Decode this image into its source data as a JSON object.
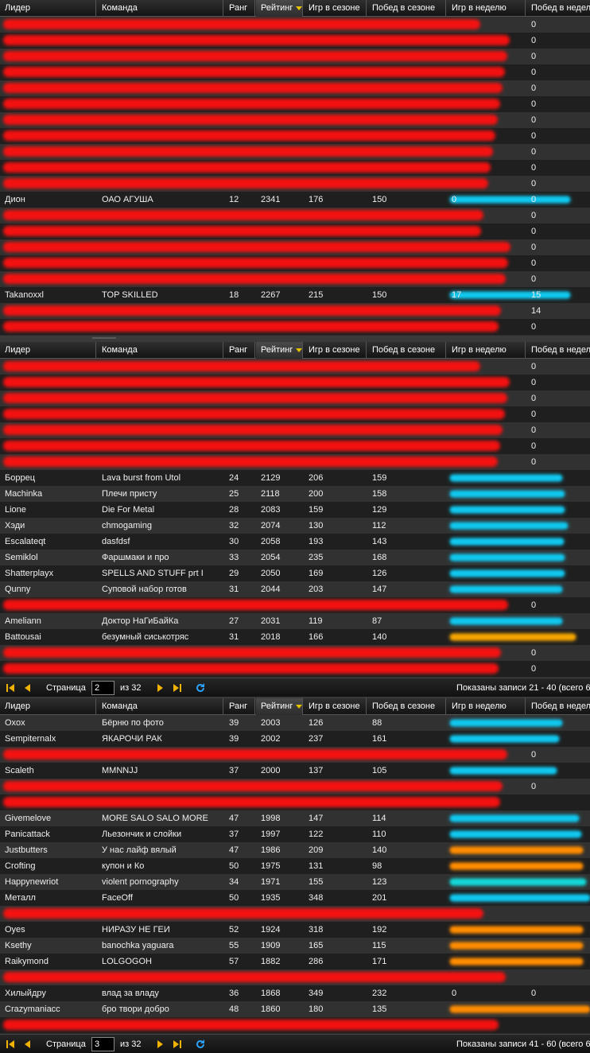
{
  "columns": {
    "leader": "Лидер",
    "team": "Команда",
    "rank": "Ранг",
    "rating": "Рейтинг",
    "season_games": "Игр в сезоне",
    "season_wins": "Побед в сезоне",
    "week_games": "Игр в неделю",
    "week_wins": "Побед в неделю"
  },
  "colors": {
    "bar_cyan": "#10c8f0",
    "bar_orange": "#ff8c00",
    "bar_gold": "#f5a500",
    "bar_teal": "#14d8d8",
    "redaction": "#ff1010",
    "sort_arrow": "#e6c200"
  },
  "pager1": {
    "page_label": "Страница",
    "page": "2",
    "of": "из 32",
    "summary": "Показаны записи 21 - 40 (всего 6"
  },
  "pager2": {
    "page_label": "Страница",
    "page": "3",
    "of": "из 32",
    "summary": "Показаны записи 41 - 60 (всего 6"
  },
  "panel1_rows": [
    {
      "redacted": true,
      "leader": "",
      "team": "",
      "rank": "",
      "rating": "",
      "sg": "",
      "sw": "",
      "wg": "",
      "ww": "0"
    },
    {
      "redacted": true,
      "leader": "",
      "team": "",
      "rank": "",
      "rating": "",
      "sg": "",
      "sw": "",
      "wg": "",
      "ww": "0"
    },
    {
      "redacted": true,
      "leader": "",
      "team": "",
      "rank": "",
      "rating": "",
      "sg": "",
      "sw": "",
      "wg": "",
      "ww": "0"
    },
    {
      "redacted": true,
      "leader": "",
      "team": "",
      "rank": "",
      "rating": "",
      "sg": "",
      "sw": "",
      "wg": "",
      "ww": "0"
    },
    {
      "redacted": true,
      "leader": "",
      "team": "",
      "rank": "",
      "rating": "",
      "sg": "",
      "sw": "",
      "wg": "",
      "ww": "0"
    },
    {
      "redacted": true,
      "leader": "",
      "team": "",
      "rank": "",
      "rating": "",
      "sg": "",
      "sw": "",
      "wg": "",
      "ww": "0"
    },
    {
      "redacted": true,
      "leader": "",
      "team": "",
      "rank": "",
      "rating": "",
      "sg": "",
      "sw": "",
      "wg": "",
      "ww": "0"
    },
    {
      "redacted": true,
      "leader": "",
      "team": "",
      "rank": "",
      "rating": "",
      "sg": "",
      "sw": "",
      "wg": "",
      "ww": "0"
    },
    {
      "redacted": true,
      "leader": "",
      "team": "",
      "rank": "",
      "rating": "",
      "sg": "",
      "sw": "",
      "wg": "",
      "ww": "0"
    },
    {
      "redacted": true,
      "leader": "",
      "team": "",
      "rank": "",
      "rating": "",
      "sg": "",
      "sw": "",
      "wg": "",
      "ww": "0"
    },
    {
      "redacted": true,
      "leader": "",
      "team": "",
      "rank": "",
      "rating": "",
      "sg": "",
      "sw": "",
      "wg": "",
      "ww": "0"
    },
    {
      "redacted": false,
      "leader": "Дион",
      "team": "ОАО АГУША",
      "rank": "12",
      "rating": "2341",
      "sg": "176",
      "sw": "150",
      "wg": "0",
      "ww": "0",
      "bar": "cyan",
      "bar_len": 0.86
    },
    {
      "redacted": true,
      "leader": "",
      "team": "",
      "rank": "",
      "rating": "",
      "sg": "",
      "sw": "",
      "wg": "",
      "ww": "0"
    },
    {
      "redacted": true,
      "leader": "",
      "team": "",
      "rank": "",
      "rating": "",
      "sg": "",
      "sw": "",
      "wg": "",
      "ww": "0"
    },
    {
      "redacted": true,
      "leader": "",
      "team": "",
      "rank": "",
      "rating": "",
      "sg": "",
      "sw": "",
      "wg": "",
      "ww": "0"
    },
    {
      "redacted": true,
      "leader": "",
      "team": "",
      "rank": "",
      "rating": "",
      "sg": "",
      "sw": "",
      "wg": "",
      "ww": "0"
    },
    {
      "redacted": true,
      "leader": "",
      "team": "",
      "rank": "",
      "rating": "",
      "sg": "",
      "sw": "",
      "wg": "",
      "ww": "0"
    },
    {
      "redacted": false,
      "leader": "Takanoxxl",
      "team": "TOP SKILLED",
      "rank": "18",
      "rating": "2267",
      "sg": "215",
      "sw": "150",
      "wg": "17",
      "ww": "15",
      "bar": "cyan",
      "bar_len": 0.86
    },
    {
      "redacted": true,
      "leader": "",
      "team": "",
      "rank": "",
      "rating": "",
      "sg": "",
      "sw": "",
      "wg": "",
      "ww": "14"
    },
    {
      "redacted": true,
      "leader": "",
      "team": "",
      "rank": "",
      "rating": "",
      "sg": "",
      "sw": "",
      "wg": "",
      "ww": "0"
    }
  ],
  "panel2_rows": [
    {
      "redacted": true,
      "leader": "",
      "team": "",
      "rank": "",
      "rating": "",
      "sg": "",
      "sw": "",
      "wg": "",
      "ww": "0"
    },
    {
      "redacted": true,
      "leader": "",
      "team": "",
      "rank": "",
      "rating": "",
      "sg": "",
      "sw": "",
      "wg": "",
      "ww": "0"
    },
    {
      "redacted": true,
      "leader": "",
      "team": "",
      "rank": "",
      "rating": "",
      "sg": "",
      "sw": "",
      "wg": "",
      "ww": "0"
    },
    {
      "redacted": true,
      "leader": "",
      "team": "",
      "rank": "",
      "rating": "",
      "sg": "",
      "sw": "",
      "wg": "",
      "ww": "0"
    },
    {
      "redacted": true,
      "leader": "",
      "team": "",
      "rank": "",
      "rating": "",
      "sg": "",
      "sw": "",
      "wg": "",
      "ww": "0"
    },
    {
      "redacted": true,
      "leader": "",
      "team": "",
      "rank": "",
      "rating": "",
      "sg": "",
      "sw": "",
      "wg": "",
      "ww": "0"
    },
    {
      "redacted": true,
      "leader": "",
      "team": "",
      "rank": "",
      "rating": "",
      "sg": "",
      "sw": "",
      "wg": "",
      "ww": "0"
    },
    {
      "redacted": false,
      "leader": "Боррец",
      "team": "Lava burst from Utol",
      "rank": "24",
      "rating": "2129",
      "sg": "206",
      "sw": "159",
      "wg": "",
      "ww": "",
      "bar": "cyan",
      "bar_len": 0.8
    },
    {
      "redacted": false,
      "leader": "Machinka",
      "team": "Плечи присту",
      "rank": "25",
      "rating": "2118",
      "sg": "200",
      "sw": "158",
      "wg": "",
      "ww": "",
      "bar": "cyan",
      "bar_len": 0.82
    },
    {
      "redacted": false,
      "leader": "Lione",
      "team": "Die For Metal",
      "rank": "28",
      "rating": "2083",
      "sg": "159",
      "sw": "129",
      "wg": "",
      "ww": "",
      "bar": "cyan",
      "bar_len": 0.82
    },
    {
      "redacted": false,
      "leader": "Хэди",
      "team": "chmogaming",
      "rank": "32",
      "rating": "2074",
      "sg": "130",
      "sw": "112",
      "wg": "",
      "ww": "",
      "bar": "cyan",
      "bar_len": 0.84
    },
    {
      "redacted": false,
      "leader": "Escalateqt",
      "team": "dasfdsf",
      "rank": "30",
      "rating": "2058",
      "sg": "193",
      "sw": "143",
      "wg": "",
      "ww": "",
      "bar": "cyan",
      "bar_len": 0.81
    },
    {
      "redacted": false,
      "leader": "Semiklol",
      "team": "Фаршмаки и про",
      "rank": "33",
      "rating": "2054",
      "sg": "235",
      "sw": "168",
      "wg": "",
      "ww": "",
      "bar": "cyan",
      "bar_len": 0.82
    },
    {
      "redacted": false,
      "leader": "Shatterplayx",
      "team": "SPELLS AND STUFF prt I",
      "rank": "29",
      "rating": "2050",
      "sg": "169",
      "sw": "126",
      "wg": "",
      "ww": "",
      "bar": "cyan",
      "bar_len": 0.82
    },
    {
      "redacted": false,
      "leader": "Qunny",
      "team": "Суповой набор готов",
      "rank": "31",
      "rating": "2044",
      "sg": "203",
      "sw": "147",
      "wg": "",
      "ww": "",
      "bar": "cyan",
      "bar_len": 0.8
    },
    {
      "redacted": true,
      "leader": "",
      "team": "",
      "rank": "",
      "rating": "",
      "sg": "",
      "sw": "",
      "wg": "",
      "ww": "0"
    },
    {
      "redacted": false,
      "leader": "Ameliann",
      "team": "Доктор НаГиБайКа",
      "rank": "27",
      "rating": "2031",
      "sg": "119",
      "sw": "87",
      "wg": "",
      "ww": "",
      "bar": "cyan",
      "bar_len": 0.8
    },
    {
      "redacted": false,
      "leader": "Battousai",
      "team": "безумный сиськотряс",
      "rank": "31",
      "rating": "2018",
      "sg": "166",
      "sw": "140",
      "wg": "",
      "ww": "",
      "bar": "gold",
      "bar_len": 0.9
    },
    {
      "redacted": true,
      "leader": "",
      "team": "",
      "rank": "",
      "rating": "",
      "sg": "",
      "sw": "",
      "wg": "",
      "ww": "0"
    },
    {
      "redacted": true,
      "leader": "",
      "team": "",
      "rank": "",
      "rating": "",
      "sg": "",
      "sw": "",
      "wg": "",
      "ww": "0"
    }
  ],
  "panel3_rows": [
    {
      "redacted": false,
      "leader": "Oxox",
      "team": "Бёрню по фото",
      "rank": "39",
      "rating": "2003",
      "sg": "126",
      "sw": "88",
      "wg": "",
      "ww": "",
      "bar": "cyan",
      "bar_len": 0.8
    },
    {
      "redacted": false,
      "leader": "Sempiternalx",
      "team": "ЯКАРОЧИ РАК",
      "rank": "39",
      "rating": "2002",
      "sg": "237",
      "sw": "161",
      "wg": "",
      "ww": "",
      "bar": "cyan",
      "bar_len": 0.78
    },
    {
      "redacted": true,
      "leader": "",
      "team": "",
      "rank": "",
      "rating": "",
      "sg": "",
      "sw": "",
      "wg": "",
      "ww": "0"
    },
    {
      "redacted": false,
      "leader": "Scaleth",
      "team": "MMNNJJ",
      "rank": "37",
      "rating": "2000",
      "sg": "137",
      "sw": "105",
      "wg": "",
      "ww": "",
      "bar": "cyan",
      "bar_len": 0.76
    },
    {
      "redacted": true,
      "leader": "",
      "team": "",
      "rank": "",
      "rating": "",
      "sg": "",
      "sw": "",
      "wg": "",
      "ww": "0"
    },
    {
      "redacted": true,
      "leader": "",
      "team": "",
      "rank": "",
      "rating": "",
      "sg": "",
      "sw": "",
      "wg": "",
      "ww": ""
    },
    {
      "redacted": false,
      "leader": "Givemelove",
      "team": "MORE SALO SALO MORE",
      "rank": "47",
      "rating": "1998",
      "sg": "147",
      "sw": "114",
      "wg": "",
      "ww": "",
      "bar": "cyan",
      "bar_len": 0.92
    },
    {
      "redacted": false,
      "leader": "Panicattack",
      "team": "Льезончик и слойки",
      "rank": "37",
      "rating": "1997",
      "sg": "122",
      "sw": "110",
      "wg": "",
      "ww": "",
      "bar": "cyan",
      "bar_len": 0.94
    },
    {
      "redacted": false,
      "leader": "Justbutters",
      "team": "У нас лайф вялый",
      "rank": "47",
      "rating": "1986",
      "sg": "209",
      "sw": "140",
      "wg": "",
      "ww": "",
      "bar": "orange",
      "bar_len": 0.95
    },
    {
      "redacted": false,
      "leader": "Crofting",
      "team": "купон и Ко",
      "rank": "50",
      "rating": "1975",
      "sg": "131",
      "sw": "98",
      "wg": "",
      "ww": "",
      "bar": "orange",
      "bar_len": 0.95
    },
    {
      "redacted": false,
      "leader": "Happynewriot",
      "team": "violent pornography",
      "rank": "34",
      "rating": "1971",
      "sg": "155",
      "sw": "123",
      "wg": "",
      "ww": "",
      "bar": "teal",
      "bar_len": 0.97
    },
    {
      "redacted": false,
      "leader": "Металл",
      "team": "FaceOff",
      "rank": "50",
      "rating": "1935",
      "sg": "348",
      "sw": "201",
      "wg": "",
      "ww": "",
      "bar": "cyan",
      "bar_len": 1.0
    },
    {
      "redacted": true,
      "leader": "",
      "team": "",
      "rank": "",
      "rating": "",
      "sg": "",
      "sw": "",
      "wg": "",
      "ww": ""
    },
    {
      "redacted": false,
      "leader": "Oyes",
      "team": "НИРАЗУ НЕ ГЕИ",
      "rank": "52",
      "rating": "1924",
      "sg": "318",
      "sw": "192",
      "wg": "",
      "ww": "",
      "bar": "orange",
      "bar_len": 0.95
    },
    {
      "redacted": false,
      "leader": "Ksethy",
      "team": "banochka yaguara",
      "rank": "55",
      "rating": "1909",
      "sg": "165",
      "sw": "115",
      "wg": "",
      "ww": "",
      "bar": "orange",
      "bar_len": 0.95
    },
    {
      "redacted": false,
      "leader": "Raikymond",
      "team": "LOLGOGOH",
      "rank": "57",
      "rating": "1882",
      "sg": "286",
      "sw": "171",
      "wg": "",
      "ww": "",
      "bar": "orange",
      "bar_len": 0.95
    },
    {
      "redacted": true,
      "leader": "",
      "team": "",
      "rank": "",
      "rating": "",
      "sg": "",
      "sw": "",
      "wg": "",
      "ww": ""
    },
    {
      "redacted": false,
      "leader": "Хилыйдру",
      "team": "влад за владу",
      "rank": "36",
      "rating": "1868",
      "sg": "349",
      "sw": "232",
      "wg": "0",
      "ww": "0"
    },
    {
      "redacted": false,
      "leader": "Crazymaniacc",
      "team": "бро твори добро",
      "rank": "48",
      "rating": "1860",
      "sg": "180",
      "sw": "135",
      "wg": "",
      "ww": "",
      "bar": "orange",
      "bar_len": 1.0
    },
    {
      "redacted": true,
      "leader": "",
      "team": "",
      "rank": "",
      "rating": "",
      "sg": "",
      "sw": "",
      "wg": "",
      "ww": ""
    }
  ]
}
